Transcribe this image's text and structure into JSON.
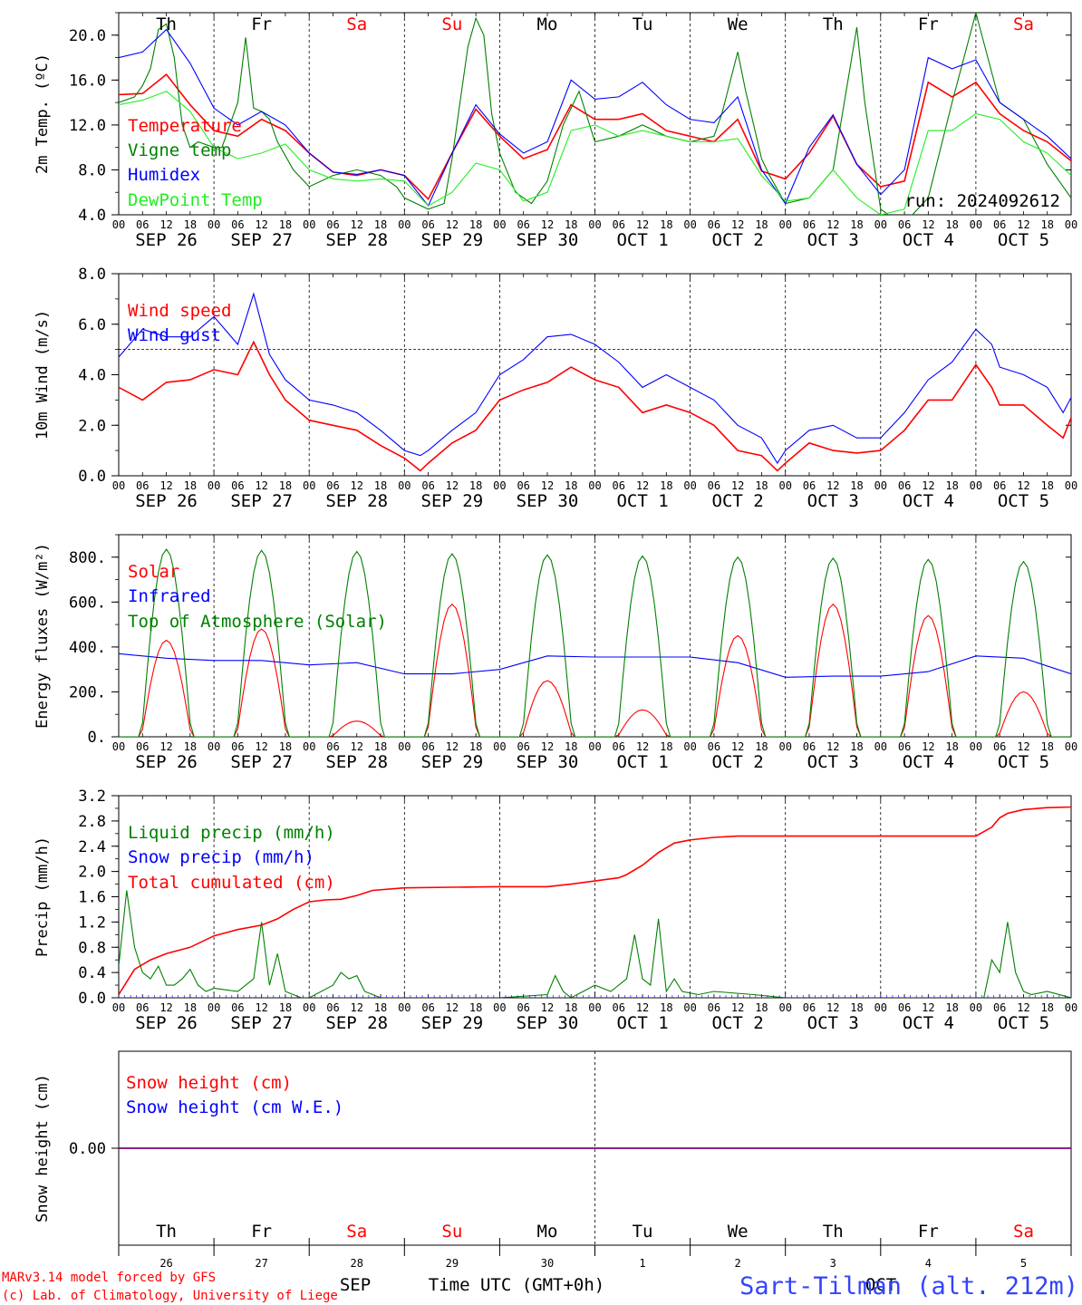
{
  "days": {
    "names": [
      "Th",
      "Fr",
      "Sa",
      "Su",
      "Mo",
      "Tu",
      "We",
      "Th",
      "Fr",
      "Sa"
    ],
    "weekend": [
      false,
      false,
      true,
      true,
      false,
      false,
      false,
      false,
      false,
      true
    ],
    "dates": [
      "SEP 26",
      "SEP 27",
      "SEP 28",
      "SEP 29",
      "SEP 30",
      "OCT  1",
      "OCT  2",
      "OCT  3",
      "OCT  4",
      "OCT  5"
    ],
    "daynums": [
      "26",
      "27",
      "28",
      "29",
      "30",
      "1",
      "2",
      "3",
      "4",
      "5"
    ]
  },
  "hour_ticks": [
    "00",
    "06",
    "12",
    "18"
  ],
  "hour_end": "00",
  "colors": {
    "red": "#ff0000",
    "green": "#008000",
    "blue": "#0000ff",
    "lightgreen": "#22ee22",
    "purple": "#800080",
    "title_blue": "#3344ff"
  },
  "run_label": "run: 2024092612",
  "bottom": {
    "month_sep": "SEP",
    "month_oct": "OCT",
    "axis_title": "Time UTC (GMT+0h)",
    "credit1": "MARv3.14 model forced by GFS",
    "credit2": "(c) Lab. of Climatology, University of Liege",
    "station": "Sart-Tilman (alt. 212m)"
  },
  "chart_data": [
    {
      "type": "line",
      "ylabel": "2m Temp. (ºC)",
      "ylim": [
        4,
        22
      ],
      "yticks": [
        "4.0",
        "8.0",
        "12.0",
        "16.0",
        "20.0"
      ],
      "x_unit": "hours since SEP 26 00 UTC",
      "series": [
        {
          "name": "Temperature",
          "color": "red",
          "x": [
            0,
            6,
            12,
            18,
            24,
            30,
            36,
            42,
            48,
            54,
            60,
            66,
            72,
            78,
            84,
            90,
            96,
            102,
            108,
            114,
            120,
            126,
            132,
            138,
            144,
            150,
            156,
            162,
            168,
            174,
            180,
            186,
            192,
            198,
            204,
            210,
            216,
            222,
            228,
            234,
            240
          ],
          "y": [
            14.7,
            14.8,
            16.5,
            13.8,
            11.5,
            11.0,
            12.5,
            11.5,
            9.5,
            7.8,
            7.5,
            8.0,
            7.5,
            5.4,
            9.5,
            13.4,
            11.0,
            9.0,
            9.8,
            13.8,
            12.5,
            12.5,
            13.0,
            11.5,
            11.0,
            10.5,
            12.5,
            7.9,
            7.2,
            9.5,
            12.8,
            8.5,
            6.5,
            7.0,
            15.8,
            14.5,
            15.8,
            13.0,
            11.5,
            10.5,
            8.8
          ]
        },
        {
          "name": "Vigne temp",
          "color": "green",
          "x": [
            0,
            4,
            6,
            8,
            10,
            12,
            14,
            16,
            18,
            20,
            24,
            26,
            28,
            30,
            32,
            34,
            36,
            38,
            40,
            44,
            48,
            54,
            60,
            66,
            70,
            72,
            78,
            82,
            84,
            86,
            88,
            90,
            92,
            94,
            96,
            100,
            104,
            108,
            112,
            116,
            120,
            126,
            132,
            138,
            144,
            150,
            152,
            156,
            158,
            160,
            162,
            164,
            168,
            174,
            180,
            186,
            188,
            192,
            196,
            200,
            204,
            210,
            216,
            222,
            228,
            234,
            240
          ],
          "y": [
            14.0,
            14.5,
            15.5,
            17.0,
            20.5,
            21.0,
            18.0,
            12.0,
            10.0,
            10.5,
            10.0,
            10.0,
            12.0,
            14.0,
            19.8,
            13.5,
            13.2,
            12.5,
            10.5,
            8.0,
            6.5,
            7.5,
            8.0,
            7.5,
            6.5,
            5.5,
            4.5,
            5.0,
            9.0,
            14.0,
            19.0,
            21.5,
            20.0,
            13.0,
            9.5,
            6.0,
            5.0,
            7.0,
            12.0,
            15.0,
            10.5,
            11.0,
            12.0,
            11.0,
            10.5,
            11.0,
            13.0,
            18.5,
            15.0,
            12.0,
            9.0,
            7.5,
            5.0,
            5.5,
            8.0,
            20.7,
            14.0,
            4.5,
            3.5,
            4.0,
            5.5,
            14.0,
            22.0,
            14.0,
            12.5,
            8.5,
            5.5
          ]
        },
        {
          "name": "Humidex",
          "color": "blue",
          "x": [
            0,
            6,
            12,
            18,
            24,
            30,
            36,
            42,
            48,
            54,
            60,
            66,
            72,
            78,
            84,
            90,
            96,
            102,
            108,
            114,
            120,
            126,
            132,
            138,
            144,
            150,
            156,
            162,
            168,
            174,
            180,
            186,
            192,
            198,
            204,
            210,
            216,
            222,
            228,
            234,
            240
          ],
          "y": [
            18.0,
            18.5,
            20.5,
            17.5,
            13.5,
            12.0,
            13.2,
            12.0,
            9.5,
            7.8,
            7.6,
            8.0,
            7.5,
            4.8,
            9.5,
            13.8,
            11.2,
            9.5,
            10.5,
            16.0,
            14.3,
            14.5,
            15.8,
            13.8,
            12.5,
            12.2,
            14.5,
            8.0,
            5.0,
            10.0,
            12.9,
            8.5,
            5.8,
            8.0,
            18.0,
            17.0,
            17.8,
            14.0,
            12.5,
            11.0,
            9.0
          ]
        },
        {
          "name": "DewPoint Temp",
          "color": "lightgreen",
          "x": [
            0,
            6,
            12,
            18,
            24,
            30,
            36,
            42,
            48,
            54,
            60,
            66,
            72,
            78,
            84,
            90,
            96,
            102,
            108,
            114,
            120,
            126,
            132,
            138,
            144,
            150,
            156,
            162,
            168,
            174,
            180,
            186,
            192,
            198,
            204,
            210,
            216,
            222,
            228,
            234,
            240
          ],
          "y": [
            13.8,
            14.2,
            15.0,
            13.2,
            10.0,
            9.0,
            9.5,
            10.3,
            8.0,
            7.2,
            7.0,
            7.2,
            7.0,
            4.8,
            6.0,
            8.6,
            8.0,
            5.2,
            6.0,
            11.5,
            12.0,
            11.0,
            11.5,
            11.0,
            10.5,
            10.5,
            10.8,
            7.5,
            5.2,
            5.5,
            8.0,
            5.5,
            4.0,
            4.5,
            11.5,
            11.5,
            13.0,
            12.5,
            10.5,
            9.5,
            7.5
          ]
        }
      ]
    },
    {
      "type": "line",
      "ylabel": "10m Wind (m/s)",
      "ylim": [
        0,
        8
      ],
      "yticks": [
        "0.0",
        "2.0",
        "4.0",
        "6.0",
        "8.0"
      ],
      "reference_line": 5.0,
      "series": [
        {
          "name": "Wind speed",
          "color": "red",
          "x": [
            0,
            6,
            12,
            18,
            24,
            30,
            34,
            38,
            42,
            48,
            54,
            60,
            66,
            72,
            76,
            78,
            84,
            90,
            96,
            102,
            108,
            114,
            120,
            126,
            132,
            138,
            144,
            150,
            156,
            162,
            166,
            168,
            174,
            180,
            186,
            192,
            198,
            204,
            210,
            216,
            220,
            222,
            228,
            234,
            238,
            240
          ],
          "y": [
            3.5,
            3.0,
            3.7,
            3.8,
            4.2,
            4.0,
            5.3,
            4.0,
            3.0,
            2.2,
            2.0,
            1.8,
            1.2,
            0.7,
            0.2,
            0.5,
            1.3,
            1.8,
            3.0,
            3.4,
            3.7,
            4.3,
            3.8,
            3.5,
            2.5,
            2.8,
            2.5,
            2.0,
            1.0,
            0.8,
            0.2,
            0.5,
            1.3,
            1.0,
            0.9,
            1.0,
            1.8,
            3.0,
            3.0,
            4.4,
            3.5,
            2.8,
            2.8,
            2.0,
            1.5,
            2.3
          ]
        },
        {
          "name": "Wind gust",
          "color": "blue",
          "x": [
            0,
            6,
            12,
            18,
            24,
            30,
            34,
            38,
            42,
            48,
            54,
            60,
            66,
            72,
            76,
            78,
            84,
            90,
            96,
            102,
            108,
            114,
            120,
            126,
            132,
            138,
            144,
            150,
            156,
            162,
            166,
            168,
            174,
            180,
            186,
            192,
            198,
            204,
            210,
            216,
            220,
            222,
            228,
            234,
            238,
            240
          ],
          "y": [
            4.7,
            5.8,
            5.5,
            5.5,
            6.3,
            5.2,
            7.2,
            4.8,
            3.8,
            3.0,
            2.8,
            2.5,
            1.8,
            1.0,
            0.8,
            1.0,
            1.8,
            2.5,
            4.0,
            4.6,
            5.5,
            5.6,
            5.2,
            4.5,
            3.5,
            4.0,
            3.5,
            3.0,
            2.0,
            1.5,
            0.5,
            1.0,
            1.8,
            2.0,
            1.5,
            1.5,
            2.5,
            3.8,
            4.5,
            5.8,
            5.2,
            4.3,
            4.0,
            3.5,
            2.5,
            3.1
          ]
        }
      ]
    },
    {
      "type": "line",
      "ylabel": "Energy fluxes (W/m²)",
      "ylim": [
        0,
        900
      ],
      "yticks": [
        "0.",
        "200.",
        "400.",
        "600.",
        "800."
      ],
      "series": [
        {
          "name": "Solar",
          "color": "red",
          "peaks": [
            [
              12,
              430
            ],
            [
              36,
              480
            ],
            [
              60,
              70
            ],
            [
              84,
              590
            ],
            [
              108,
              250
            ],
            [
              132,
              120
            ],
            [
              156,
              450
            ],
            [
              180,
              590
            ],
            [
              204,
              540
            ],
            [
              228,
              200
            ]
          ]
        },
        {
          "name": "Infrared",
          "color": "blue",
          "x": [
            0,
            12,
            24,
            36,
            48,
            60,
            72,
            84,
            96,
            108,
            120,
            132,
            144,
            156,
            168,
            180,
            192,
            204,
            216,
            228,
            240
          ],
          "y": [
            370,
            350,
            340,
            340,
            320,
            330,
            280,
            280,
            300,
            360,
            355,
            355,
            355,
            330,
            265,
            270,
            270,
            290,
            360,
            350,
            280
          ]
        },
        {
          "name": "Top of Atmosphere (Solar)",
          "color": "green",
          "peaks": [
            [
              12,
              835
            ],
            [
              36,
              830
            ],
            [
              60,
              825
            ],
            [
              84,
              815
            ],
            [
              108,
              810
            ],
            [
              132,
              805
            ],
            [
              156,
              800
            ],
            [
              180,
              795
            ],
            [
              204,
              790
            ],
            [
              228,
              780
            ]
          ]
        }
      ]
    },
    {
      "type": "line",
      "ylabel": "Precip (mm/h)",
      "ylim": [
        0,
        3.2
      ],
      "yticks": [
        "0.0",
        "0.4",
        "0.8",
        "1.2",
        "1.6",
        "2.0",
        "2.4",
        "2.8",
        "3.2"
      ],
      "series": [
        {
          "name": "Liquid precip (mm/h)",
          "color": "green",
          "x": [
            0,
            2,
            4,
            6,
            8,
            10,
            12,
            14,
            16,
            18,
            20,
            22,
            24,
            30,
            34,
            36,
            38,
            40,
            42,
            44,
            46,
            48,
            54,
            56,
            58,
            60,
            62,
            64,
            66,
            72,
            96,
            108,
            110,
            112,
            114,
            120,
            124,
            128,
            130,
            132,
            134,
            136,
            138,
            140,
            142,
            146,
            150,
            160,
            168,
            218,
            220,
            222,
            224,
            226,
            228,
            230,
            234,
            240
          ],
          "y": [
            0.5,
            1.7,
            0.8,
            0.4,
            0.3,
            0.5,
            0.2,
            0.2,
            0.3,
            0.45,
            0.2,
            0.1,
            0.15,
            0.1,
            0.3,
            1.2,
            0.2,
            0.7,
            0.1,
            0.05,
            0.0,
            0.0,
            0.2,
            0.4,
            0.3,
            0.35,
            0.1,
            0.05,
            0.0,
            0.0,
            0.0,
            0.05,
            0.35,
            0.1,
            0.0,
            0.2,
            0.1,
            0.3,
            1.0,
            0.3,
            0.2,
            1.25,
            0.1,
            0.3,
            0.1,
            0.05,
            0.1,
            0.05,
            0.0,
            0.0,
            0.6,
            0.4,
            1.2,
            0.4,
            0.1,
            0.05,
            0.1,
            0.0
          ]
        },
        {
          "name": "Snow precip (mm/h)",
          "color": "blue",
          "x": [
            0,
            240
          ],
          "y": [
            0,
            0
          ]
        },
        {
          "name": "Total cumulated (cm)",
          "color": "red",
          "x": [
            0,
            4,
            8,
            12,
            18,
            24,
            30,
            36,
            40,
            44,
            48,
            52,
            56,
            60,
            64,
            72,
            84,
            96,
            108,
            114,
            120,
            126,
            128,
            132,
            136,
            140,
            144,
            150,
            156,
            168,
            180,
            192,
            204,
            216,
            220,
            222,
            224,
            228,
            234,
            240
          ],
          "y": [
            0.05,
            0.45,
            0.6,
            0.7,
            0.8,
            0.98,
            1.08,
            1.15,
            1.25,
            1.4,
            1.52,
            1.55,
            1.56,
            1.62,
            1.7,
            1.74,
            1.75,
            1.76,
            1.76,
            1.8,
            1.85,
            1.9,
            1.95,
            2.1,
            2.3,
            2.45,
            2.5,
            2.54,
            2.56,
            2.56,
            2.56,
            2.56,
            2.56,
            2.56,
            2.7,
            2.85,
            2.92,
            2.98,
            3.01,
            3.02
          ]
        }
      ]
    },
    {
      "type": "line",
      "ylabel": "Snow height (cm)",
      "ylim": [
        -1,
        1
      ],
      "yticks": [
        "0.00"
      ],
      "series": [
        {
          "name": "Snow height (cm)",
          "color": "red",
          "x": [
            0,
            240
          ],
          "y": [
            0,
            0
          ]
        },
        {
          "name": "Snow height (cm W.E.)",
          "color": "blue",
          "x": [
            0,
            240
          ],
          "y": [
            0,
            0
          ]
        }
      ]
    }
  ]
}
